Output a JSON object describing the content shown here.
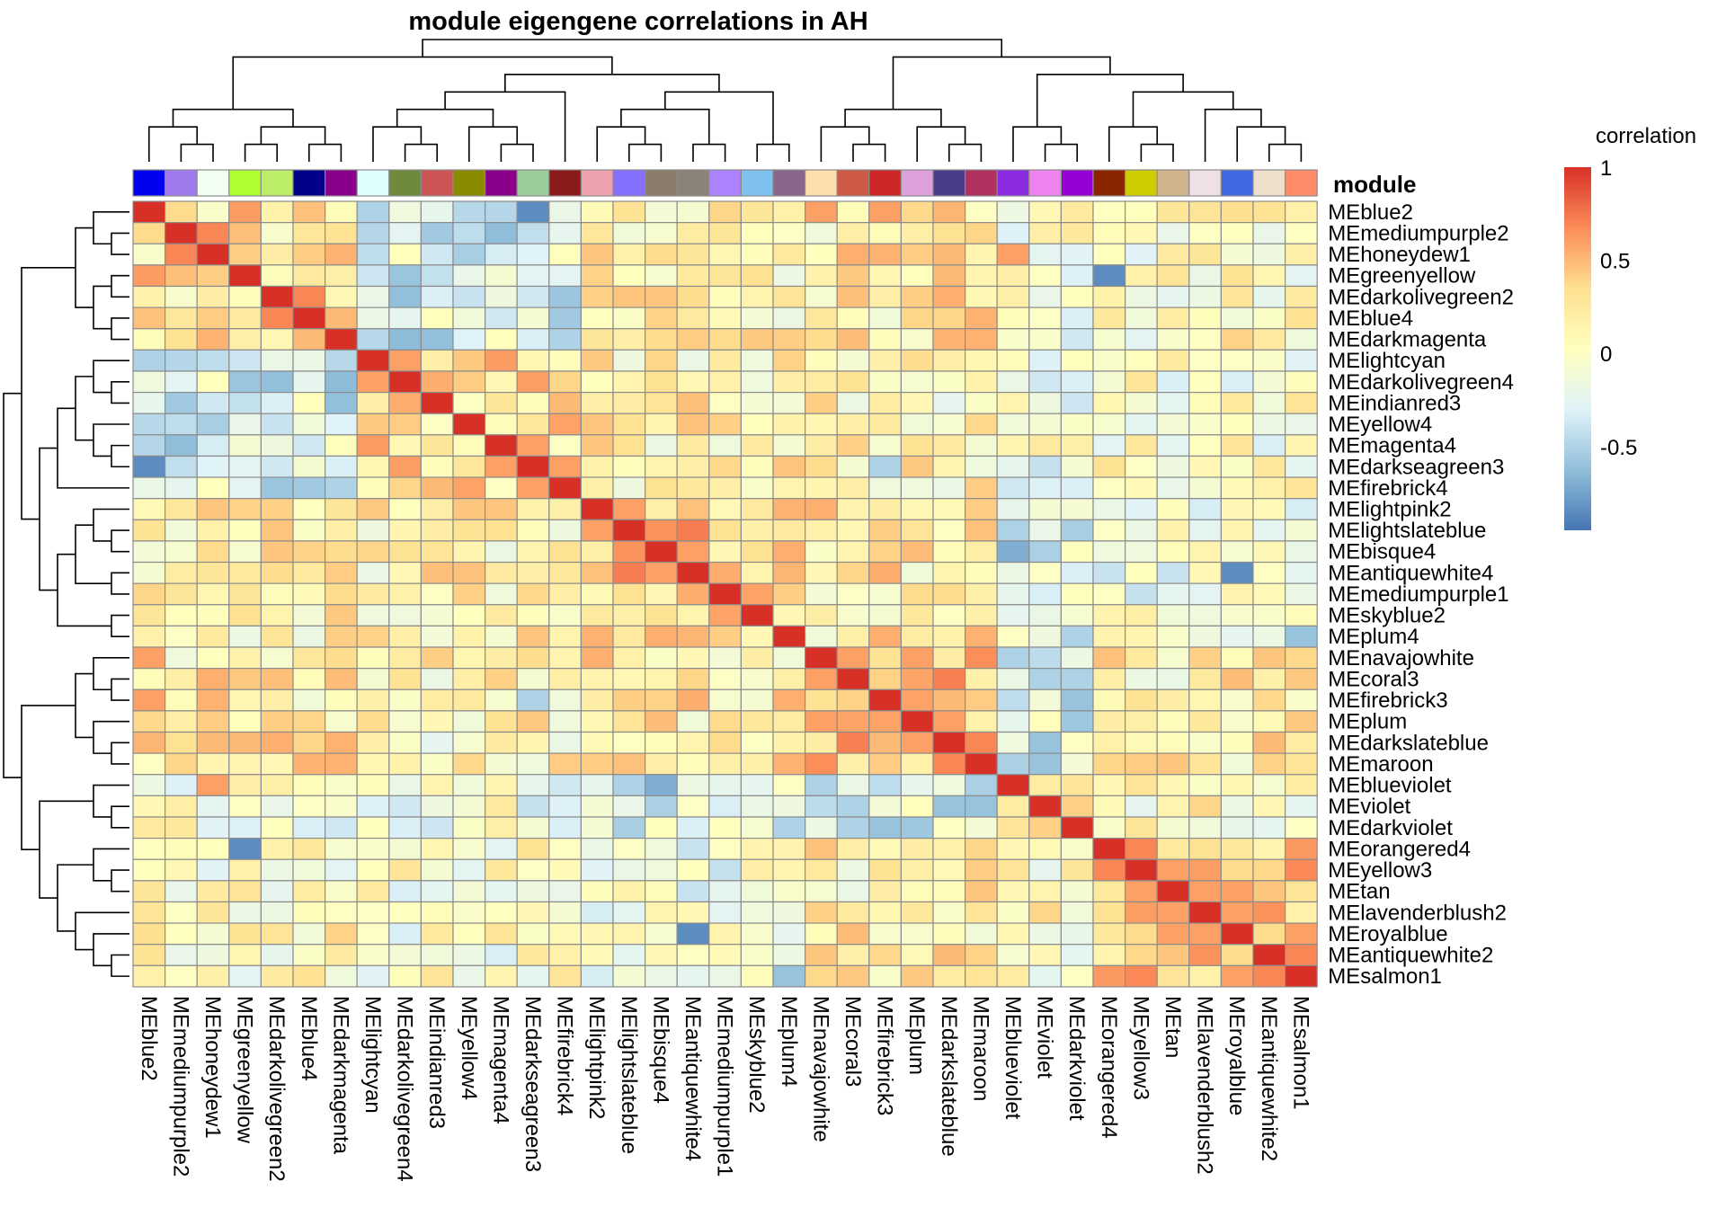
{
  "chart_data": {
    "type": "heatmap",
    "title": "module eigengene correlations in AH",
    "annotation_label": "module",
    "legend": {
      "title": "correlation",
      "placement": "right",
      "range": [
        -0.95,
        1
      ],
      "ticks": [
        {
          "value": 1,
          "label": "1"
        },
        {
          "value": 0.5,
          "label": "0.5"
        },
        {
          "value": 0,
          "label": "0"
        },
        {
          "value": -0.5,
          "label": "-0.5"
        }
      ],
      "colors": [
        "#4575B4",
        "#91BFDB",
        "#E0F3F8",
        "#FFFFBF",
        "#FEE090",
        "#FC8D59",
        "#D73027"
      ]
    },
    "rows": [
      "MEblue2",
      "MEmediumpurple2",
      "MEhoneydew1",
      "MEgreenyellow",
      "MEdarkolivegreen2",
      "MEblue4",
      "MEdarkmagenta",
      "MElightcyan",
      "MEdarkolivegreen4",
      "MEindianred3",
      "MEyellow4",
      "MEmagenta4",
      "MEdarkseagreen3",
      "MEfirebrick4",
      "MElightpink2",
      "MElightslateblue",
      "MEbisque4",
      "MEantiquewhite4",
      "MEmediumpurple1",
      "MEskyblue2",
      "MEplum4",
      "MEnavajowhite",
      "MEcoral3",
      "MEfirebrick3",
      "MEplum",
      "MEdarkslateblue",
      "MEmaroon",
      "MEblueviolet",
      "MEviolet",
      "MEdarkviolet",
      "MEorangered4",
      "MEyellow3",
      "MEtan",
      "MElavenderblush2",
      "MEroyalblue",
      "MEantiquewhite2",
      "MEsalmon1"
    ],
    "columns": [
      "MEblue2",
      "MEmediumpurple2",
      "MEhoneydew1",
      "MEgreenyellow",
      "MEdarkolivegreen2",
      "MEblue4",
      "MEdarkmagenta",
      "MElightcyan",
      "MEdarkolivegreen4",
      "MEindianred3",
      "MEyellow4",
      "MEmagenta4",
      "MEdarkseagreen3",
      "MEfirebrick4",
      "MElightpink2",
      "MElightslateblue",
      "MEbisque4",
      "MEantiquewhite4",
      "MEmediumpurple1",
      "MEskyblue2",
      "MEplum4",
      "MEnavajowhite",
      "MEcoral3",
      "MEfirebrick3",
      "MEplum",
      "MEdarkslateblue",
      "MEmaroon",
      "MEblueviolet",
      "MEviolet",
      "MEdarkviolet",
      "MEorangered4",
      "MEyellow3",
      "MEtan",
      "MElavenderblush2",
      "MEroyalblue",
      "MEantiquewhite2",
      "MEsalmon1"
    ],
    "module_colors": [
      "#0000EE",
      "#9F79EE",
      "#F0FFF0",
      "#ADFF2F",
      "#BCEE68",
      "#00008B",
      "#8B008B",
      "#E0FFFF",
      "#6E8B3D",
      "#CD5555",
      "#8B8B00",
      "#8B008B",
      "#9BCD9B",
      "#8B1A1A",
      "#EEA2AD",
      "#8470FF",
      "#8B7D6B",
      "#8B8378",
      "#AB82FF",
      "#7EC0EE",
      "#8B668B",
      "#FFDEAD",
      "#CD5B45",
      "#CD2626",
      "#DDA0DD",
      "#483D8B",
      "#B03060",
      "#8A2BE2",
      "#EE82EE",
      "#9400D3",
      "#8B2500",
      "#CDCD00",
      "#D2B48C",
      "#EEE0E5",
      "#4169E1",
      "#EEDFCC",
      "#FF8C69"
    ],
    "groups": [
      [
        0,
        6
      ],
      [
        7,
        13
      ],
      [
        14,
        20
      ],
      [
        21,
        26
      ],
      [
        27,
        29
      ],
      [
        30,
        36
      ]
    ],
    "block_means": [
      [
        0.3,
        -0.3,
        0.15,
        0.2,
        -0.05,
        0.05
      ],
      [
        -0.3,
        0.35,
        0.15,
        0.1,
        -0.1,
        0.0
      ],
      [
        0.15,
        0.15,
        0.4,
        0.2,
        -0.25,
        -0.1
      ],
      [
        0.2,
        0.1,
        0.2,
        0.4,
        -0.25,
        0.15
      ],
      [
        -0.05,
        -0.1,
        -0.25,
        -0.25,
        0.3,
        0.1
      ],
      [
        0.05,
        0.0,
        -0.1,
        0.15,
        0.1,
        0.35
      ]
    ],
    "matrix_note": "values estimated from cell colours",
    "values": []
  }
}
